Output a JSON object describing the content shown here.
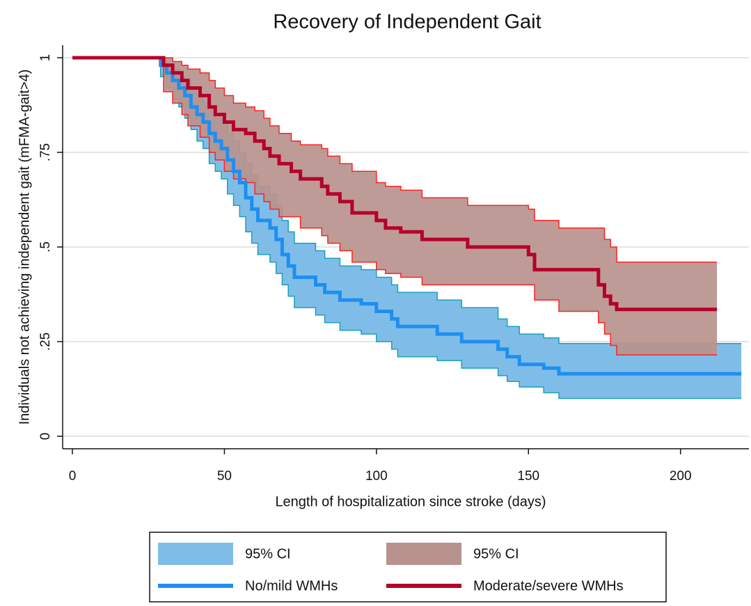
{
  "chart_data": {
    "type": "step",
    "title": "Recovery of Independent Gait",
    "x_label": "Length of hospitalization since stroke (days)",
    "y_label": "Individuals not achieving independent gait (mFMA-gait>4)",
    "xlim": [
      -3.2,
      222.5
    ],
    "ylim": [
      -0.033,
      1.033
    ],
    "xticks": [
      0,
      50,
      100,
      150,
      200
    ],
    "yticks": [
      0,
      {
        "value": 0.25,
        "label": ".25"
      },
      {
        "value": 0.5,
        "label": ".5"
      },
      {
        "value": 0.75,
        "label": ".75"
      },
      1
    ],
    "grid": true,
    "series": [
      {
        "name": "No/mild WMHs",
        "color": "#1e8ff0",
        "ci_name": "95% CI",
        "ci_color": "#7fbde8",
        "ci_edge_color": "#1aa0b8",
        "x": [
          0,
          27,
          29,
          31,
          33,
          35,
          37,
          39,
          41,
          43,
          45,
          47,
          49,
          51,
          53,
          55,
          57,
          59,
          61,
          65,
          67,
          69,
          71,
          73,
          80,
          83,
          88,
          95,
          100,
          105,
          107,
          120,
          128,
          140,
          143,
          147,
          155,
          160,
          220
        ],
        "values": [
          1,
          1,
          0.98,
          0.96,
          0.94,
          0.92,
          0.9,
          0.87,
          0.85,
          0.83,
          0.8,
          0.78,
          0.76,
          0.73,
          0.7,
          0.67,
          0.63,
          0.6,
          0.57,
          0.55,
          0.52,
          0.48,
          0.45,
          0.42,
          0.4,
          0.38,
          0.36,
          0.35,
          0.33,
          0.31,
          0.29,
          0.27,
          0.25,
          0.23,
          0.21,
          0.19,
          0.18,
          0.165,
          0.165
        ],
        "ci_lower": [
          1,
          1,
          0.95,
          0.92,
          0.89,
          0.87,
          0.84,
          0.81,
          0.78,
          0.76,
          0.72,
          0.7,
          0.68,
          0.64,
          0.61,
          0.58,
          0.54,
          0.51,
          0.48,
          0.46,
          0.43,
          0.4,
          0.37,
          0.34,
          0.32,
          0.3,
          0.28,
          0.27,
          0.25,
          0.23,
          0.21,
          0.2,
          0.18,
          0.16,
          0.145,
          0.13,
          0.115,
          0.1,
          0.1
        ],
        "ci_upper": [
          1,
          1,
          0.99,
          0.98,
          0.97,
          0.95,
          0.94,
          0.92,
          0.9,
          0.88,
          0.86,
          0.84,
          0.83,
          0.8,
          0.78,
          0.75,
          0.72,
          0.69,
          0.66,
          0.64,
          0.61,
          0.57,
          0.54,
          0.51,
          0.49,
          0.47,
          0.45,
          0.44,
          0.42,
          0.4,
          0.38,
          0.36,
          0.34,
          0.31,
          0.29,
          0.27,
          0.26,
          0.245,
          0.245
        ]
      },
      {
        "name": "Moderate/severe WMHs",
        "color": "#b5002a",
        "ci_name": "95% CI",
        "ci_color": "#b8938d",
        "ci_edge_color": "#ff2020",
        "x": [
          0,
          26,
          30,
          33,
          36,
          38,
          42,
          45,
          47,
          50,
          53,
          57,
          60,
          63,
          65,
          68,
          72,
          75,
          82,
          84,
          88,
          92,
          100,
          103,
          108,
          115,
          130,
          150,
          152,
          160,
          173,
          175,
          177,
          179,
          212
        ],
        "values": [
          1,
          1,
          0.98,
          0.96,
          0.94,
          0.92,
          0.9,
          0.87,
          0.85,
          0.83,
          0.81,
          0.8,
          0.78,
          0.76,
          0.74,
          0.72,
          0.7,
          0.68,
          0.66,
          0.64,
          0.62,
          0.59,
          0.57,
          0.55,
          0.54,
          0.52,
          0.5,
          0.48,
          0.44,
          0.44,
          0.4,
          0.37,
          0.35,
          0.335,
          0.335
        ],
        "ci_lower": [
          1,
          1,
          0.91,
          0.88,
          0.85,
          0.82,
          0.79,
          0.75,
          0.73,
          0.7,
          0.68,
          0.67,
          0.64,
          0.62,
          0.6,
          0.58,
          0.58,
          0.55,
          0.53,
          0.51,
          0.49,
          0.46,
          0.44,
          0.43,
          0.42,
          0.4,
          0.4,
          0.4,
          0.36,
          0.33,
          0.3,
          0.27,
          0.24,
          0.215,
          0.215
        ],
        "ci_upper": [
          1,
          1,
          1,
          0.99,
          0.98,
          0.97,
          0.96,
          0.94,
          0.92,
          0.9,
          0.88,
          0.87,
          0.86,
          0.84,
          0.82,
          0.8,
          0.78,
          0.77,
          0.76,
          0.74,
          0.72,
          0.7,
          0.67,
          0.66,
          0.65,
          0.63,
          0.61,
          0.6,
          0.57,
          0.55,
          0.55,
          0.52,
          0.5,
          0.46,
          0.46
        ]
      }
    ]
  }
}
